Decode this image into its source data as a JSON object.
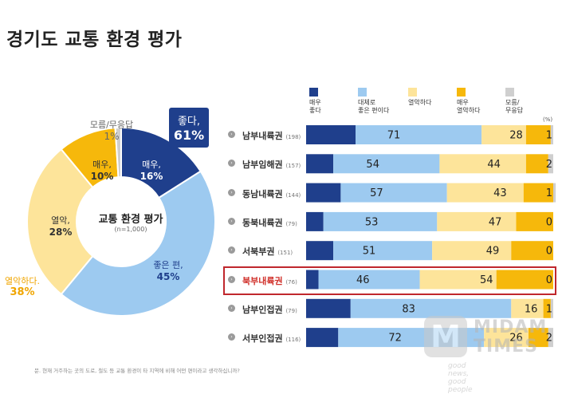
{
  "title": "경기도 교통 환경 평가",
  "colors": {
    "very_good": "#1f3f8c",
    "fairly_good": "#9dcaf0",
    "poor": "#fde49a",
    "very_poor": "#f6b80b",
    "unknown": "#cfcfcf"
  },
  "donut": {
    "center_title": "교통 환경 평가",
    "center_sub": "(n=1,000)",
    "good_total_label": "좋다,",
    "good_total_value": "61%",
    "bad_total_label": "열악하다.",
    "bad_total_value": "38%",
    "segments": [
      {
        "key": "very_good",
        "label": "매우,",
        "value": 16,
        "value_text": "16%"
      },
      {
        "key": "fairly_good",
        "label": "좋은 편,",
        "value": 45,
        "value_text": "45%"
      },
      {
        "key": "poor",
        "label": "열악,",
        "value": 28,
        "value_text": "28%"
      },
      {
        "key": "very_poor",
        "label": "매우,",
        "value": 10,
        "value_text": "10%"
      },
      {
        "key": "unknown",
        "label": "모름/무응답",
        "value": 1,
        "value_text": "1%"
      }
    ]
  },
  "legend": [
    {
      "key": "very_good",
      "label1": "매우",
      "label2": "좋다"
    },
    {
      "key": "fairly_good",
      "label1": "대체로",
      "label2": "좋은 편이다"
    },
    {
      "key": "poor",
      "label1": "열악하다",
      "label2": ""
    },
    {
      "key": "very_poor",
      "label1": "매우",
      "label2": "열악하다"
    },
    {
      "key": "unknown",
      "label1": "모름/",
      "label2": "무응답"
    }
  ],
  "unit": "(%)",
  "chart_data": {
    "type": "bar",
    "stacked": true,
    "orientation": "horizontal",
    "categories": [
      "남부내륙권",
      "남부임해권",
      "동남내륙권",
      "동북내륙권",
      "서북부권",
      "북부내륙권",
      "남부인접권",
      "서부인접권"
    ],
    "sample_sizes": [
      "(198)",
      "(157)",
      "(144)",
      "(79)",
      "(151)",
      "(76)",
      "(79)",
      "(116)"
    ],
    "highlight": "북부내륙권",
    "series": [
      {
        "name": "매우 좋다",
        "key": "very_good",
        "values": [
          20,
          11,
          14,
          7,
          11,
          5,
          18,
          13
        ]
      },
      {
        "name": "대체로 좋은 편이다",
        "key": "fairly_good",
        "values": [
          51,
          43,
          43,
          46,
          40,
          41,
          65,
          59
        ]
      },
      {
        "name": "열악하다",
        "key": "poor",
        "values": [
          18,
          35,
          31,
          32,
          32,
          31,
          13,
          18
        ]
      },
      {
        "name": "매우 열악하다",
        "key": "very_poor",
        "values": [
          10,
          9,
          12,
          15,
          17,
          23,
          3,
          8
        ]
      },
      {
        "name": "모름/무응답",
        "key": "unknown",
        "values": [
          1,
          2,
          1,
          0,
          0,
          0,
          1,
          2
        ]
      }
    ],
    "good_totals": [
      "71",
      "54",
      "57",
      "53",
      "51",
      "46",
      "83",
      "72"
    ],
    "bad_totals": [
      "28",
      "44",
      "43",
      "47",
      "49",
      "54",
      "16",
      "26"
    ],
    "unknown_labels": [
      "1",
      "2",
      "1",
      "0",
      "0",
      "0",
      "1",
      "2"
    ],
    "xlim": [
      0,
      100
    ]
  },
  "footnote": "문. 현재 거주하는 곳의 도로, 철도 등 교통 환경이 타 지역에 비해 어떤 편이라고 생각하십니까?",
  "watermark": {
    "line1": "MIDAM",
    "line2": "TIMES",
    "tagline": "good news, good people",
    "logo_letter": "M"
  }
}
